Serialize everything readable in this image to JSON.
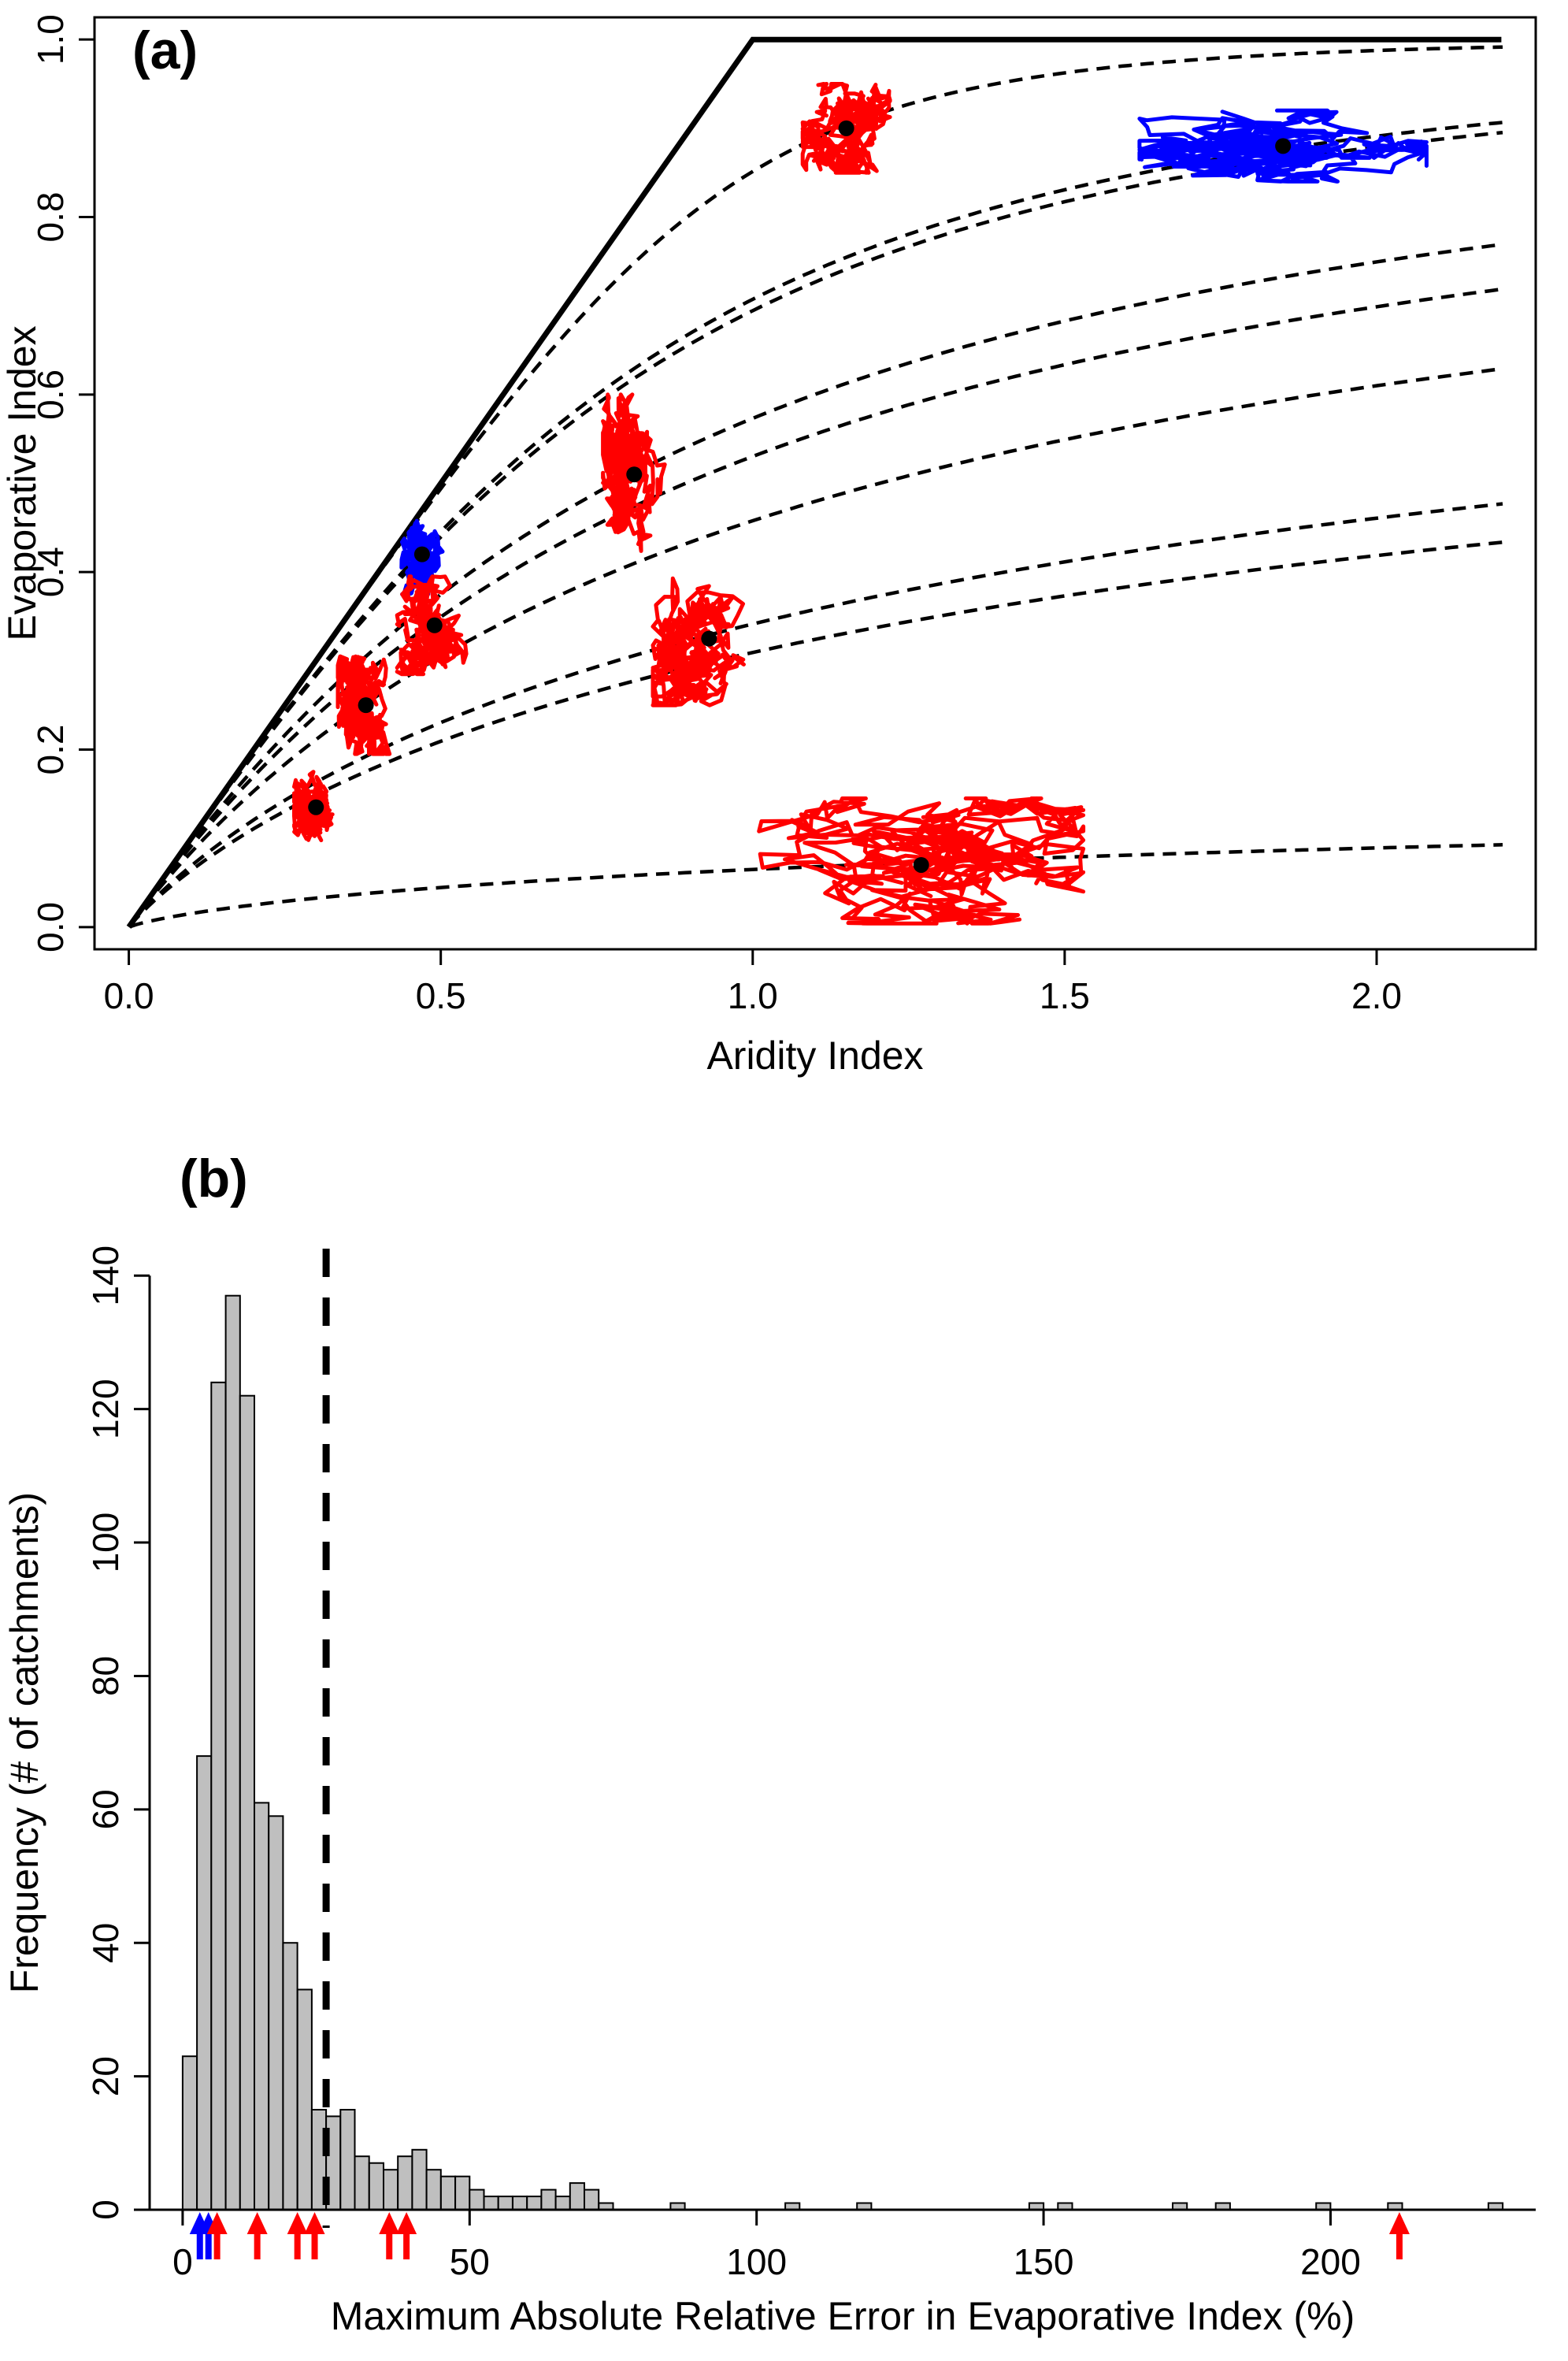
{
  "figure": {
    "panel_a_label": "(a)",
    "panel_b_label": "(b)"
  },
  "colors": {
    "red": "#FF0000",
    "blue": "#0000FF",
    "black": "#000000",
    "bar_fill": "#BFBFBF"
  },
  "chart_data": [
    {
      "type": "line",
      "panel": "a",
      "xlabel": "Aridity Index",
      "ylabel": "Evaporative Index",
      "xlim": [
        0,
        2.2
      ],
      "ylim": [
        0,
        1
      ],
      "xticks": [
        0,
        0.5,
        1,
        1.5,
        2
      ],
      "xtick_labels": [
        "0.0",
        "0.5",
        "1.0",
        "1.5",
        "2.0"
      ],
      "yticks": [
        0,
        0.2,
        0.4,
        0.6,
        0.8,
        1
      ],
      "ytick_labels": [
        "0.0",
        "0.2",
        "0.4",
        "0.6",
        "0.8",
        "1.0"
      ],
      "grid": false,
      "limit_line": [
        [
          0,
          0
        ],
        [
          1,
          1
        ],
        [
          2.2,
          1
        ]
      ],
      "catchment_points": [
        {
          "x": 1.15,
          "y": 0.9,
          "omega": 5.0,
          "color": "red",
          "spread_x": 0.07,
          "spread_y": 0.05,
          "seed": 11
        },
        {
          "x": 1.85,
          "y": 0.88,
          "omega": 2.7,
          "color": "blue",
          "spread_x": 0.23,
          "spread_y": 0.04,
          "seed": 22
        },
        {
          "x": 0.81,
          "y": 0.51,
          "omega": 1.95,
          "color": "red",
          "spread_x": 0.05,
          "spread_y": 0.09,
          "seed": 33
        },
        {
          "x": 0.47,
          "y": 0.42,
          "omega": 2.6,
          "color": "blue",
          "spread_x": 0.035,
          "spread_y": 0.045,
          "seed": 44
        },
        {
          "x": 0.49,
          "y": 0.34,
          "omega": 1.8,
          "color": "red",
          "spread_x": 0.06,
          "spread_y": 0.055,
          "seed": 55
        },
        {
          "x": 0.93,
          "y": 0.325,
          "omega": 1.37,
          "color": "red",
          "spread_x": 0.09,
          "spread_y": 0.075,
          "seed": 66
        },
        {
          "x": 0.38,
          "y": 0.25,
          "omega": 1.6,
          "color": "red",
          "spread_x": 0.045,
          "spread_y": 0.055,
          "seed": 77
        },
        {
          "x": 0.3,
          "y": 0.135,
          "omega": 1.32,
          "color": "red",
          "spread_x": 0.035,
          "spread_y": 0.04,
          "seed": 88
        },
        {
          "x": 1.27,
          "y": 0.07,
          "omega": 1.05,
          "color": "red",
          "spread_x": 0.26,
          "spread_y": 0.075,
          "seed": 99
        }
      ]
    },
    {
      "type": "bar",
      "panel": "b",
      "xlabel": "Maximum Absolute Relative Error in Evaporative Index (%)",
      "ylabel": "Frequency (# of catchments)",
      "xlim": [
        0,
        230
      ],
      "ylim": [
        0,
        140
      ],
      "xticks": [
        0,
        50,
        100,
        150,
        200
      ],
      "xtick_labels": [
        "0",
        "50",
        "100",
        "150",
        "200"
      ],
      "yticks": [
        0,
        20,
        40,
        60,
        80,
        100,
        120,
        140
      ],
      "ytick_labels": [
        "0",
        "20",
        "40",
        "60",
        "80",
        "100",
        "120",
        "140"
      ],
      "grid": false,
      "bin_start": 0,
      "bin_width": 2.5,
      "counts": [
        23,
        68,
        124,
        137,
        122,
        61,
        59,
        40,
        33,
        15,
        14,
        15,
        8,
        7,
        6,
        8,
        9,
        6,
        5,
        5,
        3,
        2,
        2,
        2,
        2,
        3,
        2,
        4,
        3,
        1,
        0,
        0,
        0,
        0,
        1,
        0,
        0,
        0,
        0,
        0,
        0,
        0,
        1,
        0,
        0,
        0,
        0,
        1,
        0,
        0,
        0,
        0,
        0,
        0,
        0,
        0,
        0,
        0,
        0,
        1,
        0,
        1,
        0,
        0,
        0,
        0,
        0,
        0,
        0,
        1,
        0,
        0,
        1,
        0,
        0,
        0,
        0,
        0,
        0,
        1,
        0,
        0,
        0,
        0,
        1,
        0,
        0,
        0,
        0,
        0,
        0,
        1
      ],
      "threshold_line_x": 25,
      "arrows": [
        {
          "x": 3,
          "color": "blue"
        },
        {
          "x": 4.5,
          "color": "blue"
        },
        {
          "x": 6,
          "color": "red"
        },
        {
          "x": 13,
          "color": "red"
        },
        {
          "x": 20,
          "color": "red"
        },
        {
          "x": 23,
          "color": "red"
        },
        {
          "x": 36,
          "color": "red"
        },
        {
          "x": 39,
          "color": "red"
        },
        {
          "x": 212,
          "color": "red"
        }
      ]
    }
  ]
}
